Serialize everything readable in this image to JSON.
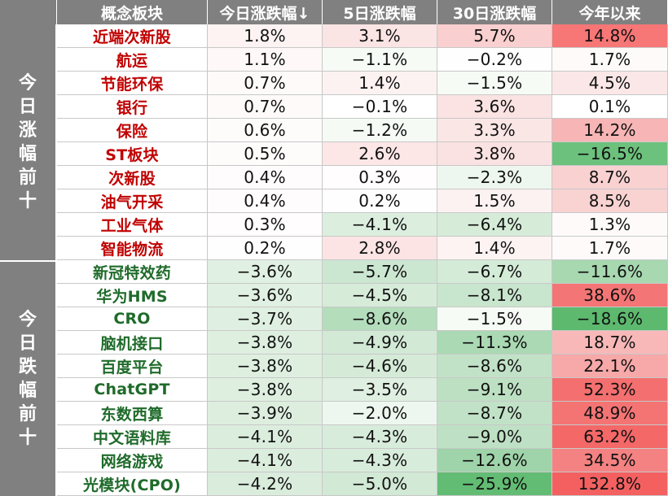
{
  "headers": [
    "概念板块",
    "今日涨跌幅↓",
    "5日涨跌幅",
    "30日涨跌幅",
    "今年以来"
  ],
  "groups": [
    {
      "label": [
        "今",
        "日",
        "涨",
        "幅",
        "前",
        "十"
      ],
      "direction": "up"
    },
    {
      "label": [
        "今",
        "日",
        "跌",
        "幅",
        "前",
        "十"
      ],
      "direction": "down"
    }
  ],
  "rows": [
    {
      "name": "近端次新股",
      "group": 0,
      "cells": [
        {
          "text": "1.8%",
          "color": "#fdf3f3"
        },
        {
          "text": "3.1%",
          "color": "#fbe4e4"
        },
        {
          "text": "5.7%",
          "color": "#f9cfcf"
        },
        {
          "text": "14.8%",
          "color": "#f77676"
        }
      ]
    },
    {
      "name": "航运",
      "group": 0,
      "cells": [
        {
          "text": "1.1%",
          "color": "#fef8f8"
        },
        {
          "text": "−1.1%",
          "color": "#f6fbf6"
        },
        {
          "text": "−0.2%",
          "color": "#fefefe"
        },
        {
          "text": "1.7%",
          "color": "#fefafa"
        }
      ]
    },
    {
      "name": "节能环保",
      "group": 0,
      "cells": [
        {
          "text": "0.7%",
          "color": "#fefafa"
        },
        {
          "text": "1.4%",
          "color": "#fdf2f2"
        },
        {
          "text": "−1.5%",
          "color": "#f6fbf6"
        },
        {
          "text": "4.5%",
          "color": "#fbe7e7"
        }
      ]
    },
    {
      "name": "银行",
      "group": 0,
      "cells": [
        {
          "text": "0.7%",
          "color": "#fefafa"
        },
        {
          "text": "−0.1%",
          "color": "#ffffff"
        },
        {
          "text": "3.6%",
          "color": "#fbe3e3"
        },
        {
          "text": "0.1%",
          "color": "#ffffff"
        }
      ]
    },
    {
      "name": "保险",
      "group": 0,
      "cells": [
        {
          "text": "0.6%",
          "color": "#fefbfb"
        },
        {
          "text": "−1.2%",
          "color": "#f5faf5"
        },
        {
          "text": "3.3%",
          "color": "#fbe6e6"
        },
        {
          "text": "14.2%",
          "color": "#f8b5b5"
        }
      ]
    },
    {
      "name": "ST板块",
      "group": 0,
      "cells": [
        {
          "text": "0.5%",
          "color": "#fefbfb"
        },
        {
          "text": "2.6%",
          "color": "#fce6e6"
        },
        {
          "text": "3.8%",
          "color": "#fbe2e2"
        },
        {
          "text": "−16.5%",
          "color": "#6cc17c"
        }
      ]
    },
    {
      "name": "次新股",
      "group": 0,
      "cells": [
        {
          "text": "0.4%",
          "color": "#fefcfc"
        },
        {
          "text": "0.3%",
          "color": "#fffdfd"
        },
        {
          "text": "−2.3%",
          "color": "#eef7ef"
        },
        {
          "text": "8.7%",
          "color": "#f9d1d1"
        }
      ]
    },
    {
      "name": "油气开采",
      "group": 0,
      "cells": [
        {
          "text": "0.4%",
          "color": "#fefcfc"
        },
        {
          "text": "0.2%",
          "color": "#fffefe"
        },
        {
          "text": "1.5%",
          "color": "#fdf2f2"
        },
        {
          "text": "8.5%",
          "color": "#f9d2d2"
        }
      ]
    },
    {
      "name": "工业气体",
      "group": 0,
      "cells": [
        {
          "text": "0.3%",
          "color": "#fffdfd"
        },
        {
          "text": "−4.1%",
          "color": "#dcefdf"
        },
        {
          "text": "−6.4%",
          "color": "#d6ecd9"
        },
        {
          "text": "1.3%",
          "color": "#fefafa"
        }
      ]
    },
    {
      "name": "智能物流",
      "group": 0,
      "cells": [
        {
          "text": "0.2%",
          "color": "#fffefe"
        },
        {
          "text": "2.8%",
          "color": "#fce4e4"
        },
        {
          "text": "1.4%",
          "color": "#fdf3f3"
        },
        {
          "text": "1.7%",
          "color": "#fefafa"
        }
      ]
    },
    {
      "name": "新冠特效药",
      "group": 1,
      "cells": [
        {
          "text": "−3.6%",
          "color": "#e0f0e2"
        },
        {
          "text": "−5.7%",
          "color": "#cce7d1"
        },
        {
          "text": "−6.7%",
          "color": "#d4ebd8"
        },
        {
          "text": "−11.6%",
          "color": "#a7d8b0"
        }
      ]
    },
    {
      "name": "华为HMS",
      "group": 1,
      "cells": [
        {
          "text": "−3.6%",
          "color": "#e0f0e2"
        },
        {
          "text": "−4.5%",
          "color": "#d6ecd9"
        },
        {
          "text": "−8.1%",
          "color": "#c8e5cd"
        },
        {
          "text": "38.6%",
          "color": "#f47575"
        }
      ]
    },
    {
      "name": "CRO",
      "group": 1,
      "cells": [
        {
          "text": "−3.7%",
          "color": "#dfefe1"
        },
        {
          "text": "−8.6%",
          "color": "#b4ddbc"
        },
        {
          "text": "−1.5%",
          "color": "#f6fbf6"
        },
        {
          "text": "−18.6%",
          "color": "#5cb96e"
        }
      ]
    },
    {
      "name": "脑机接口",
      "group": 1,
      "cells": [
        {
          "text": "−3.8%",
          "color": "#deefe0"
        },
        {
          "text": "−4.9%",
          "color": "#d2e9d6"
        },
        {
          "text": "−11.3%",
          "color": "#aad9b3"
        },
        {
          "text": "18.7%",
          "color": "#f8b8b8"
        }
      ]
    },
    {
      "name": "百度平台",
      "group": 1,
      "cells": [
        {
          "text": "−3.8%",
          "color": "#deefe0"
        },
        {
          "text": "−4.6%",
          "color": "#d5ebd8"
        },
        {
          "text": "−8.6%",
          "color": "#c2e2c8"
        },
        {
          "text": "22.1%",
          "color": "#f7a8a8"
        }
      ]
    },
    {
      "name": "ChatGPT",
      "group": 1,
      "cells": [
        {
          "text": "−3.8%",
          "color": "#deefe0"
        },
        {
          "text": "−3.5%",
          "color": "#dfefe1"
        },
        {
          "text": "−9.1%",
          "color": "#bde0c3"
        },
        {
          "text": "52.3%",
          "color": "#f46f6f"
        }
      ]
    },
    {
      "name": "东数西算",
      "group": 1,
      "cells": [
        {
          "text": "−3.9%",
          "color": "#ddeedf"
        },
        {
          "text": "−2.0%",
          "color": "#eef7ef"
        },
        {
          "text": "−8.7%",
          "color": "#c1e2c7"
        },
        {
          "text": "48.9%",
          "color": "#f47474"
        }
      ]
    },
    {
      "name": "中文语料库",
      "group": 1,
      "cells": [
        {
          "text": "−4.1%",
          "color": "#dbeddd"
        },
        {
          "text": "−4.3%",
          "color": "#d8ecdb"
        },
        {
          "text": "−9.0%",
          "color": "#bee0c4"
        },
        {
          "text": "63.2%",
          "color": "#f46868"
        }
      ]
    },
    {
      "name": "网络游戏",
      "group": 1,
      "cells": [
        {
          "text": "−4.1%",
          "color": "#dbeddd"
        },
        {
          "text": "−4.3%",
          "color": "#d8ecdb"
        },
        {
          "text": "−12.6%",
          "color": "#9fd3a9"
        },
        {
          "text": "34.5%",
          "color": "#f48282"
        }
      ]
    },
    {
      "name": "光模块(CPO)",
      "group": 1,
      "cells": [
        {
          "text": "−4.2%",
          "color": "#daecdc"
        },
        {
          "text": "−5.0%",
          "color": "#d1e9d5"
        },
        {
          "text": "−25.9%",
          "color": "#63bc74"
        },
        {
          "text": "132.8%",
          "color": "#f46060"
        }
      ]
    }
  ]
}
